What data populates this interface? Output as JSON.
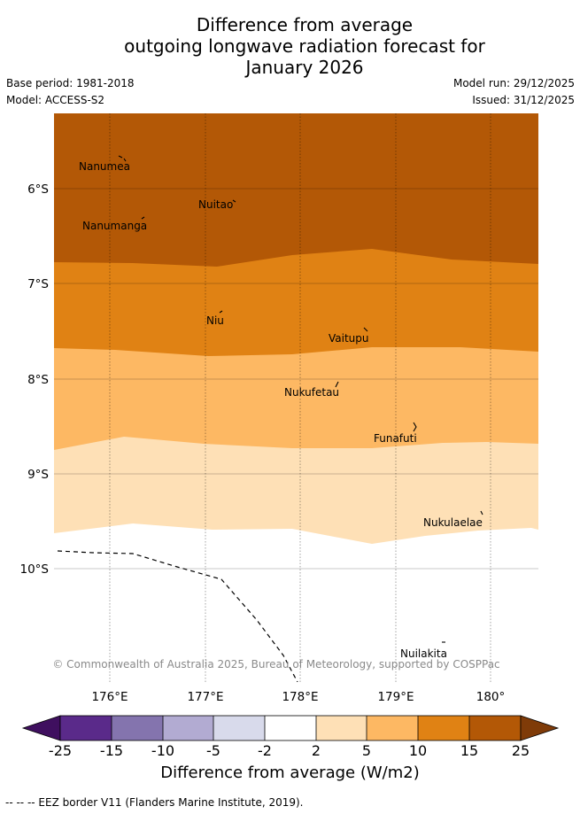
{
  "title": {
    "line1": "Difference from average",
    "line2": "outgoing longwave radiation forecast for",
    "line3": "January 2026"
  },
  "meta": {
    "base_period": "Base period: 1981-2018",
    "model": "Model: ACCESS-S2",
    "model_run": "Model run: 29/12/2025",
    "issued": "Issued: 31/12/2025"
  },
  "map": {
    "lat_labels": [
      "6°S",
      "7°S",
      "8°S",
      "9°S",
      "10°S"
    ],
    "lon_labels": [
      "176°E",
      "177°E",
      "178°E",
      "179°E",
      "180°"
    ],
    "islands": {
      "nanumea": "Nanumea",
      "nuitao": "Nuitao",
      "nanumanga": "Nanumanga",
      "niu": "Niu",
      "vaitupu": "Vaitupu",
      "nukufetau": "Nukufetau",
      "funafuti": "Funafuti",
      "nukulaelae": "Nukulaelae",
      "nuilakita": "Nuilakita"
    },
    "copyright": "© Commonwealth of Australia 2025, Bureau of Meteorology, supported by COSPPac"
  },
  "colorbar": {
    "ticks": [
      "-25",
      "-15",
      "-10",
      "-5",
      "-2",
      "2",
      "5",
      "10",
      "15",
      "25"
    ],
    "colors": [
      "#3f0f5f",
      "#5a2a8a",
      "#8474ae",
      "#b2abd2",
      "#d8daeb",
      "#ffffff",
      "#fee0b6",
      "#fdb863",
      "#e08214",
      "#b35806",
      "#7f3b08"
    ],
    "label": "Difference from average (W/m2)"
  },
  "footer": "-- -- -- EEZ border V11 (Flanders Marine Institute, 2019)."
}
